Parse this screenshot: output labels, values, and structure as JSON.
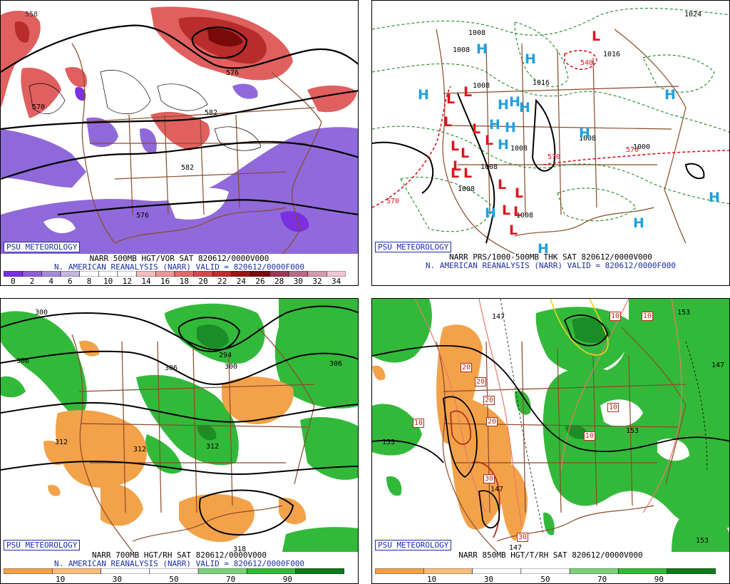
{
  "brand": "PSU METEOROLOGY",
  "colors": {
    "vor_pos": "#d9484b",
    "vor_neg": "#7d5ad6",
    "rh_dry": "#f3a24a",
    "rh_moist": "#33b93a",
    "pressure_low": "#e0111c",
    "pressure_high": "#1fa1e0",
    "thickness": "#e0111c",
    "isobar": "#1b8a1b",
    "coast": "#8a4a2a"
  },
  "panels": [
    {
      "id": "500mb",
      "title": "NARR 500MB HGT/VOR SAT 820612/0000V000",
      "subtitle": "N. AMERICAN REANALYSIS (NARR) VALID = 820612/0000F000",
      "colorbar": {
        "labels": [
          "0",
          "2",
          "4",
          "6",
          "8",
          "10",
          "12",
          "14",
          "16",
          "18",
          "20",
          "22",
          "24",
          "26",
          "28",
          "30",
          "32",
          "34"
        ],
        "colors": [
          "#7a2fe0",
          "#8f5ed8",
          "#a48ad8",
          "#c3b6e0",
          "#ffffff",
          "#ffffff",
          "#ffffff",
          "#f4bcbc",
          "#ee9696",
          "#e26a6a",
          "#d84848",
          "#c22d2d",
          "#9e1414",
          "#7a0a0a",
          "#9a3a56",
          "#b86a86",
          "#d49aae",
          "#f2c6d4"
        ]
      },
      "contour_labels": [
        "558",
        "570",
        "576",
        "582",
        "582",
        "576"
      ]
    },
    {
      "id": "sfc",
      "title": "NARR PRS/1000-500MB THK SAT 820612/0000V000",
      "subtitle": "N. AMERICAN REANALYSIS (NARR) VALID = 820612/0000F000",
      "lows": [
        "L",
        "L",
        "L",
        "L",
        "L",
        "L",
        "L",
        "L",
        "L",
        "L",
        "L",
        "L",
        "L",
        "L",
        "L",
        "L"
      ],
      "highs": [
        "H",
        "H",
        "H",
        "H",
        "H",
        "H",
        "H",
        "H",
        "H",
        "H",
        "H",
        "H",
        "H",
        "H",
        "H"
      ],
      "isobar_labels": [
        "1008",
        "1008",
        "1016",
        "1008",
        "1008",
        "1008",
        "1008",
        "1016",
        "1024",
        "1008",
        "1008",
        "1000"
      ],
      "thickness_labels": [
        "570",
        "540",
        "570",
        "570"
      ]
    },
    {
      "id": "700mb",
      "title": "NARR 700MB HGT/RH SAT 820612/0000V000",
      "subtitle": "N. AMERICAN REANALYSIS (NARR) VALID = 820612/0000F000",
      "colorbar": {
        "labels": [
          "10",
          "30",
          "50",
          "70",
          "90"
        ],
        "colors": [
          "#f3a24a",
          "#f7be7e",
          "#ffffff",
          "#ffffff",
          "#7fd07c",
          "#33b93a",
          "#0f7a1e"
        ]
      },
      "contour_labels": [
        "300",
        "306",
        "306",
        "294",
        "300",
        "306",
        "312",
        "312",
        "312",
        "318"
      ]
    },
    {
      "id": "850mb",
      "title": "NARR 850MB HGT/T/RH SAT 820612/0000V000",
      "subtitle": "",
      "colorbar": {
        "labels": [
          "10",
          "30",
          "50",
          "70",
          "90"
        ]
      },
      "contour_labels": [
        "147",
        "153",
        "147",
        "153",
        "153",
        "153",
        "147",
        "147"
      ],
      "temp_labels": [
        "10",
        "20",
        "20",
        "20",
        "20",
        "10",
        "10",
        "10",
        "10",
        "30",
        "30"
      ]
    }
  ]
}
